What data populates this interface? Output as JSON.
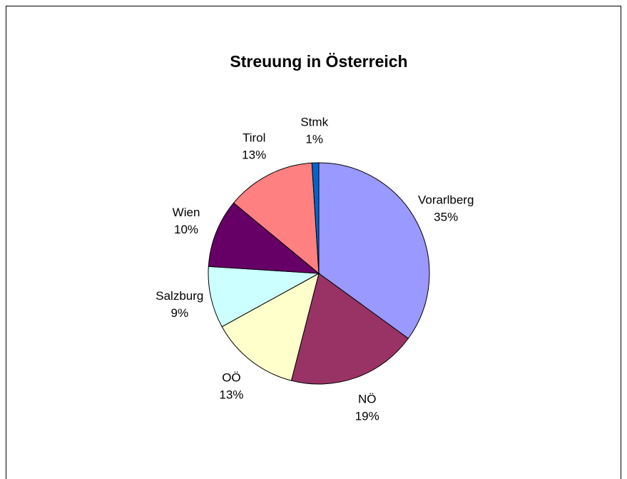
{
  "chart_data": {
    "type": "pie",
    "title": "Streuung in Österreich",
    "categories": [
      "Vorarlberg",
      "NÖ",
      "OÖ",
      "Salzburg",
      "Wien",
      "Tirol",
      "Stmk"
    ],
    "values": [
      35,
      19,
      13,
      9,
      10,
      13,
      1
    ],
    "value_labels": [
      "35%",
      "19%",
      "13%",
      "9%",
      "10%",
      "13%",
      "1%"
    ],
    "colors": [
      "#9999ff",
      "#993366",
      "#ffffcc",
      "#ccffff",
      "#660066",
      "#ff8080",
      "#0066cc"
    ]
  }
}
